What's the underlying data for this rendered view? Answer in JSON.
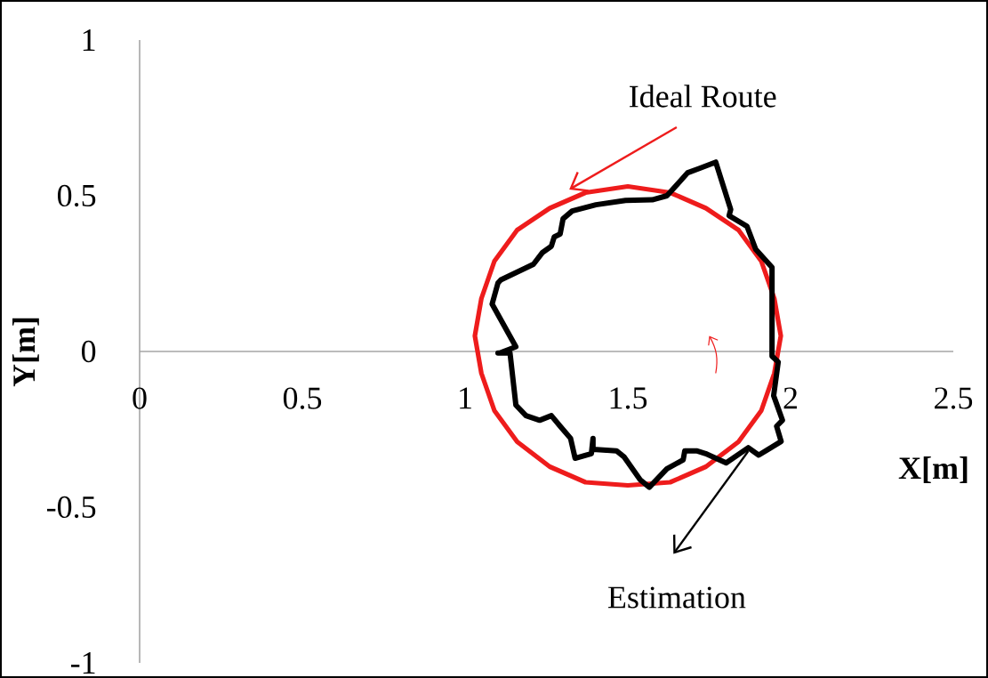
{
  "chart_data": {
    "type": "line",
    "xlabel": "X[m]",
    "ylabel": "Y[m]",
    "xlim": [
      0,
      2.5
    ],
    "ylim": [
      -1,
      1
    ],
    "xticks": [
      0,
      0.5,
      1,
      1.5,
      2,
      2.5
    ],
    "yticks": [
      -1,
      -0.5,
      0,
      0.5,
      1
    ],
    "grid": false,
    "marker": "none",
    "line_style": "solid",
    "series": [
      {
        "color": "#ee1c1c",
        "x": [
          1.97,
          1.95,
          1.91,
          1.84,
          1.74,
          1.63,
          1.5,
          1.37,
          1.26,
          1.16,
          1.09,
          1.05,
          1.03,
          1.05,
          1.09,
          1.16,
          1.26,
          1.37,
          1.5,
          1.63,
          1.74,
          1.84,
          1.91,
          1.95,
          1.97,
          1.95
        ],
        "values": [
          0.05,
          0.17,
          0.29,
          0.39,
          0.46,
          0.51,
          0.53,
          0.51,
          0.46,
          0.39,
          0.29,
          0.17,
          0.05,
          -0.07,
          -0.19,
          -0.29,
          -0.37,
          -0.42,
          -0.43,
          -0.42,
          -0.37,
          -0.29,
          -0.19,
          -0.07,
          0.05,
          0.17
        ]
      },
      {
        "color": "#000000",
        "x": [
          1.106,
          1.156,
          1.083,
          1.101,
          1.11,
          1.21,
          1.238,
          1.265,
          1.274,
          1.292,
          1.301,
          1.329,
          1.402,
          1.493,
          1.575,
          1.62,
          1.684,
          1.72,
          1.77,
          1.816,
          1.811,
          1.866,
          1.893,
          1.943,
          1.943,
          1.962,
          1.948,
          1.975,
          1.957,
          1.971,
          1.902,
          1.87,
          1.802,
          1.739,
          1.711,
          1.675,
          1.67,
          1.62,
          1.566,
          1.538,
          1.488,
          1.465,
          1.393,
          1.393,
          1.388,
          1.338,
          1.324,
          1.292,
          1.265,
          1.229,
          1.187,
          1.156,
          1.138,
          1.101
        ],
        "values": [
          -0.005,
          0.015,
          0.152,
          0.22,
          0.23,
          0.28,
          0.318,
          0.338,
          0.368,
          0.377,
          0.426,
          0.451,
          0.471,
          0.485,
          0.487,
          0.5,
          0.574,
          0.588,
          0.608,
          0.456,
          0.436,
          0.402,
          0.328,
          0.27,
          -0.015,
          -0.034,
          -0.142,
          -0.221,
          -0.24,
          -0.289,
          -0.333,
          -0.309,
          -0.358,
          -0.328,
          -0.319,
          -0.319,
          -0.348,
          -0.377,
          -0.436,
          -0.412,
          -0.338,
          -0.319,
          -0.314,
          -0.279,
          -0.328,
          -0.343,
          -0.279,
          -0.24,
          -0.206,
          -0.221,
          -0.206,
          -0.172,
          -0.005,
          -0.005
        ]
      }
    ],
    "annotations": [
      {
        "text": "Ideal Route",
        "x": 1.37,
        "y": 0.51
      },
      {
        "text": "Estimation",
        "x": 1.87,
        "y": -0.32
      }
    ]
  }
}
